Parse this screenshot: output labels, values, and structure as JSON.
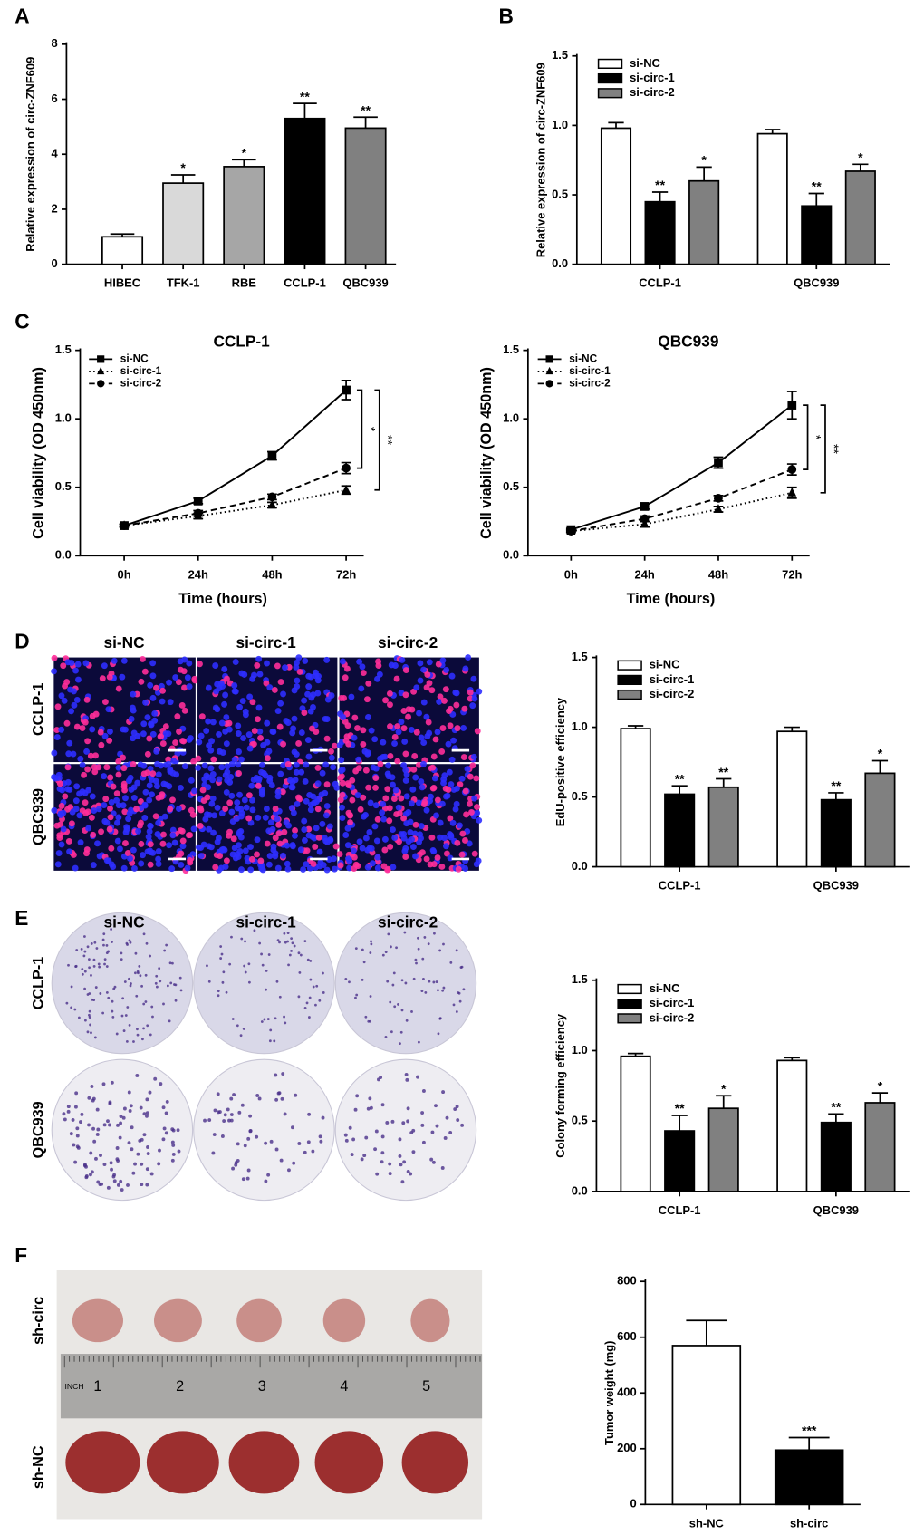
{
  "chart_data": [
    {
      "type": "bar",
      "panel": "A",
      "ylabel": "Relative expression of circ-ZNF609",
      "categories": [
        "HIBEC",
        "TFK-1",
        "RBE",
        "CCLP-1",
        "QBC939"
      ],
      "values": [
        1.0,
        2.95,
        3.55,
        5.3,
        4.95
      ],
      "errors": [
        0.1,
        0.3,
        0.25,
        0.55,
        0.4
      ],
      "significance": [
        null,
        "*",
        "*",
        "**",
        "**"
      ],
      "colors": [
        "#ffffff",
        "#d9d9d9",
        "#a6a6a6",
        "#000000",
        "#808080"
      ],
      "ylim": [
        0,
        8
      ],
      "yticks": [
        0,
        2,
        4,
        6,
        8
      ]
    },
    {
      "type": "grouped_bar",
      "panel": "B",
      "ylabel": "Relative expression of circ-ZNF609",
      "categories": [
        "CCLP-1",
        "QBC939"
      ],
      "series": [
        {
          "name": "si-NC",
          "color": "#ffffff",
          "values": [
            0.98,
            0.94
          ],
          "errors": [
            0.04,
            0.03
          ],
          "significance": [
            null,
            null
          ]
        },
        {
          "name": "si-circ-1",
          "color": "#000000",
          "values": [
            0.45,
            0.42
          ],
          "errors": [
            0.07,
            0.09
          ],
          "significance": [
            "**",
            "**"
          ]
        },
        {
          "name": "si-circ-2",
          "color": "#808080",
          "values": [
            0.6,
            0.67
          ],
          "errors": [
            0.1,
            0.05
          ],
          "significance": [
            "*",
            "*"
          ]
        }
      ],
      "ylim": [
        0,
        1.5
      ],
      "yticks": [
        {
          "value": 0,
          "label": "0.0"
        },
        {
          "value": 0.5,
          "label": "0.5"
        },
        {
          "value": 1,
          "label": "1.0"
        },
        {
          "value": 1.5,
          "label": "1.5"
        }
      ]
    },
    {
      "type": "line",
      "panel": "C",
      "title": "CCLP-1",
      "xlabel": "Time (hours)",
      "ylabel": "Cell viability (OD 450nm)",
      "categories": [
        "0h",
        "24h",
        "48h",
        "72h"
      ],
      "series": [
        {
          "name": "si-NC",
          "color": "#000000",
          "marker": "square",
          "dash": "solid",
          "values": [
            0.22,
            0.4,
            0.73,
            1.21
          ],
          "errors": [
            0.01,
            0.02,
            0.03,
            0.07
          ]
        },
        {
          "name": "si-circ-1",
          "color": "#000000",
          "marker": "triangle",
          "dash": "dotted",
          "values": [
            0.22,
            0.29,
            0.37,
            0.48
          ],
          "errors": [
            0.01,
            0.02,
            0.02,
            0.03
          ],
          "bracket": "**"
        },
        {
          "name": "si-circ-2",
          "color": "#000000",
          "marker": "circle",
          "dash": "dashed",
          "values": [
            0.22,
            0.31,
            0.43,
            0.64
          ],
          "errors": [
            0.01,
            0.02,
            0.02,
            0.04
          ],
          "bracket": "*"
        }
      ],
      "ylim": [
        0,
        1.5
      ],
      "yticks": [
        {
          "value": 0,
          "label": "0.0"
        },
        {
          "value": 0.5,
          "label": "0.5"
        },
        {
          "value": 1,
          "label": "1.0"
        },
        {
          "value": 1.5,
          "label": "1.5"
        }
      ]
    },
    {
      "type": "line",
      "title": "QBC939",
      "xlabel": "Time (hours)",
      "ylabel": "Cell viability (OD 450nm)",
      "categories": [
        "0h",
        "24h",
        "48h",
        "72h"
      ],
      "series": [
        {
          "name": "si-NC",
          "color": "#000000",
          "marker": "square",
          "dash": "solid",
          "values": [
            0.19,
            0.36,
            0.68,
            1.1
          ],
          "errors": [
            0.01,
            0.02,
            0.04,
            0.1
          ]
        },
        {
          "name": "si-circ-1",
          "color": "#000000",
          "marker": "triangle",
          "dash": "dotted",
          "values": [
            0.18,
            0.23,
            0.34,
            0.46
          ],
          "errors": [
            0.01,
            0.02,
            0.02,
            0.04
          ],
          "bracket": "**"
        },
        {
          "name": "si-circ-2",
          "color": "#000000",
          "marker": "circle",
          "dash": "dashed",
          "values": [
            0.18,
            0.27,
            0.42,
            0.63
          ],
          "errors": [
            0.01,
            0.02,
            0.02,
            0.04
          ],
          "bracket": "*"
        }
      ],
      "ylim": [
        0,
        1.5
      ],
      "yticks": [
        {
          "value": 0,
          "label": "0.0"
        },
        {
          "value": 0.5,
          "label": "0.5"
        },
        {
          "value": 1,
          "label": "1.0"
        },
        {
          "value": 1.5,
          "label": "1.5"
        }
      ]
    },
    {
      "type": "grouped_bar",
      "panel": "D",
      "ylabel": "EdU-positive efficiency",
      "categories": [
        "CCLP-1",
        "QBC939"
      ],
      "series": [
        {
          "name": "si-NC",
          "color": "#ffffff",
          "values": [
            0.99,
            0.97
          ],
          "errors": [
            0.02,
            0.03
          ],
          "significance": [
            null,
            null
          ]
        },
        {
          "name": "si-circ-1",
          "color": "#000000",
          "values": [
            0.52,
            0.48
          ],
          "errors": [
            0.06,
            0.05
          ],
          "significance": [
            "**",
            "**"
          ]
        },
        {
          "name": "si-circ-2",
          "color": "#808080",
          "values": [
            0.57,
            0.67
          ],
          "errors": [
            0.06,
            0.09
          ],
          "significance": [
            "**",
            "*"
          ]
        }
      ],
      "ylim": [
        0,
        1.5
      ],
      "yticks": [
        {
          "value": 0,
          "label": "0.0"
        },
        {
          "value": 0.5,
          "label": "0.5"
        },
        {
          "value": 1,
          "label": "1.0"
        },
        {
          "value": 1.5,
          "label": "1.5"
        }
      ]
    },
    {
      "type": "grouped_bar",
      "panel": "E",
      "ylabel": "Colony forming efficiency",
      "categories": [
        "CCLP-1",
        "QBC939"
      ],
      "series": [
        {
          "name": "si-NC",
          "color": "#ffffff",
          "values": [
            0.96,
            0.93
          ],
          "errors": [
            0.02,
            0.02
          ],
          "significance": [
            null,
            null
          ]
        },
        {
          "name": "si-circ-1",
          "color": "#000000",
          "values": [
            0.43,
            0.49
          ],
          "errors": [
            0.11,
            0.06
          ],
          "significance": [
            "**",
            "**"
          ]
        },
        {
          "name": "si-circ-2",
          "color": "#808080",
          "values": [
            0.59,
            0.63
          ],
          "errors": [
            0.09,
            0.07
          ],
          "significance": [
            "*",
            "*"
          ]
        }
      ],
      "ylim": [
        0,
        1.5
      ],
      "yticks": [
        {
          "value": 0,
          "label": "0.0"
        },
        {
          "value": 0.5,
          "label": "0.5"
        },
        {
          "value": 1,
          "label": "1.0"
        },
        {
          "value": 1.5,
          "label": "1.5"
        }
      ]
    },
    {
      "type": "bar",
      "panel": "F",
      "ylabel": "Tumor weight (mg)",
      "categories": [
        "sh-NC",
        "sh-circ"
      ],
      "values": [
        570,
        195
      ],
      "errors": [
        90,
        45
      ],
      "significance": [
        null,
        "***"
      ],
      "colors": [
        "#ffffff",
        "#000000"
      ],
      "ylim": [
        0,
        800
      ],
      "yticks": [
        0,
        200,
        400,
        600,
        800
      ]
    }
  ],
  "edu_images": {
    "columns": [
      "si-NC",
      "si-circ-1",
      "si-circ-2"
    ],
    "rows": [
      "CCLP-1",
      "QBC939"
    ]
  },
  "colony_images": {
    "columns": [
      "si-NC",
      "si-circ-1",
      "si-circ-2"
    ],
    "rows": [
      "CCLP-1",
      "QBC939"
    ]
  },
  "tumor_photo": {
    "rows": [
      "sh-circ",
      "sh-NC"
    ],
    "ruler": [
      "INCH",
      "1",
      "2",
      "3",
      "4",
      "5"
    ]
  }
}
